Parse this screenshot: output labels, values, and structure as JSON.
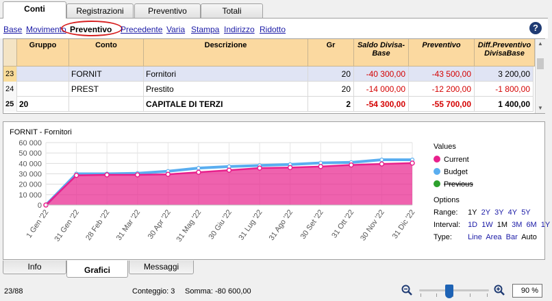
{
  "top_tabs": [
    "Conti",
    "Registrazioni",
    "Preventivo",
    "Totali"
  ],
  "toolbar_links": [
    "Base",
    "Movimento",
    "Preventivo",
    "Precedente",
    "Varia",
    "Stampa",
    "Indirizzo",
    "Ridotto"
  ],
  "help_label": "?",
  "table": {
    "headers": [
      "Gruppo",
      "Conto",
      "Descrizione",
      "Gr",
      "Saldo Divisa-Base",
      "Preventivo",
      "Diff.Preventivo DivisaBase"
    ],
    "rows": [
      {
        "num": "23",
        "gruppo": "",
        "conto": "FORNIT",
        "descrizione": "Fornitori",
        "gr": "20",
        "saldo": "-40 300,00",
        "preventivo": "-43 500,00",
        "diff": "3 200,00"
      },
      {
        "num": "24",
        "gruppo": "",
        "conto": "PREST",
        "descrizione": "Prestito",
        "gr": "20",
        "saldo": "-14 000,00",
        "preventivo": "-12 200,00",
        "diff": "-1 800,00"
      },
      {
        "num": "25",
        "gruppo": "20",
        "conto": "",
        "descrizione": "CAPITALE DI TERZI",
        "gr": "2",
        "saldo": "-54 300,00",
        "preventivo": "-55 700,00",
        "diff": "1 400,00"
      }
    ]
  },
  "chart_title": "FORNIT - Fornitori",
  "chart_data": {
    "type": "area",
    "title": "FORNIT - Fornitori",
    "categories": [
      "1 Gen '22",
      "31 Gen '22",
      "28 Feb '22",
      "31 Mar '22",
      "30 Apr '22",
      "31 Mag '22",
      "30 Giu '22",
      "31 Lug '22",
      "31 Ago '22",
      "30 Set '22",
      "31 Ott '22",
      "30 Nov '22",
      "31 Dic '22"
    ],
    "yticks": [
      "60 000",
      "50 000",
      "40 000",
      "30 000",
      "20 000",
      "10 000",
      "0"
    ],
    "ylim": [
      0,
      60000
    ],
    "series": [
      {
        "name": "Current",
        "color": "#e8208c",
        "values": [
          0,
          28500,
          29000,
          29000,
          29500,
          31500,
          33500,
          35500,
          36000,
          37000,
          38500,
          39500,
          40300
        ]
      },
      {
        "name": "Budget",
        "color": "#5aaef0",
        "values": [
          0,
          30000,
          30000,
          30500,
          32500,
          35500,
          37000,
          38000,
          39000,
          40500,
          41000,
          43500,
          43500
        ]
      }
    ],
    "grid": true
  },
  "legend": {
    "title": "Values",
    "items": [
      {
        "label": "Current",
        "color": "#e8208c"
      },
      {
        "label": "Budget",
        "color": "#5aaef0"
      },
      {
        "label": "Previous",
        "color": "#2ca02c"
      }
    ]
  },
  "options": {
    "title": "Options",
    "range_label": "Range:",
    "range": [
      "1Y",
      "2Y",
      "3Y",
      "4Y",
      "5Y"
    ],
    "interval_label": "Interval:",
    "interval": [
      "1D",
      "1W",
      "1M",
      "3M",
      "6M",
      "1Y"
    ],
    "type_label": "Type:",
    "type": [
      "Line",
      "Area",
      "Bar",
      "Auto"
    ]
  },
  "bottom_tabs": [
    "Info",
    "Grafici",
    "Messaggi"
  ],
  "status": {
    "position": "23/88",
    "conteggio": "Conteggio: 3",
    "somma": "Somma: -80 600,00",
    "zoom": "90 %"
  }
}
